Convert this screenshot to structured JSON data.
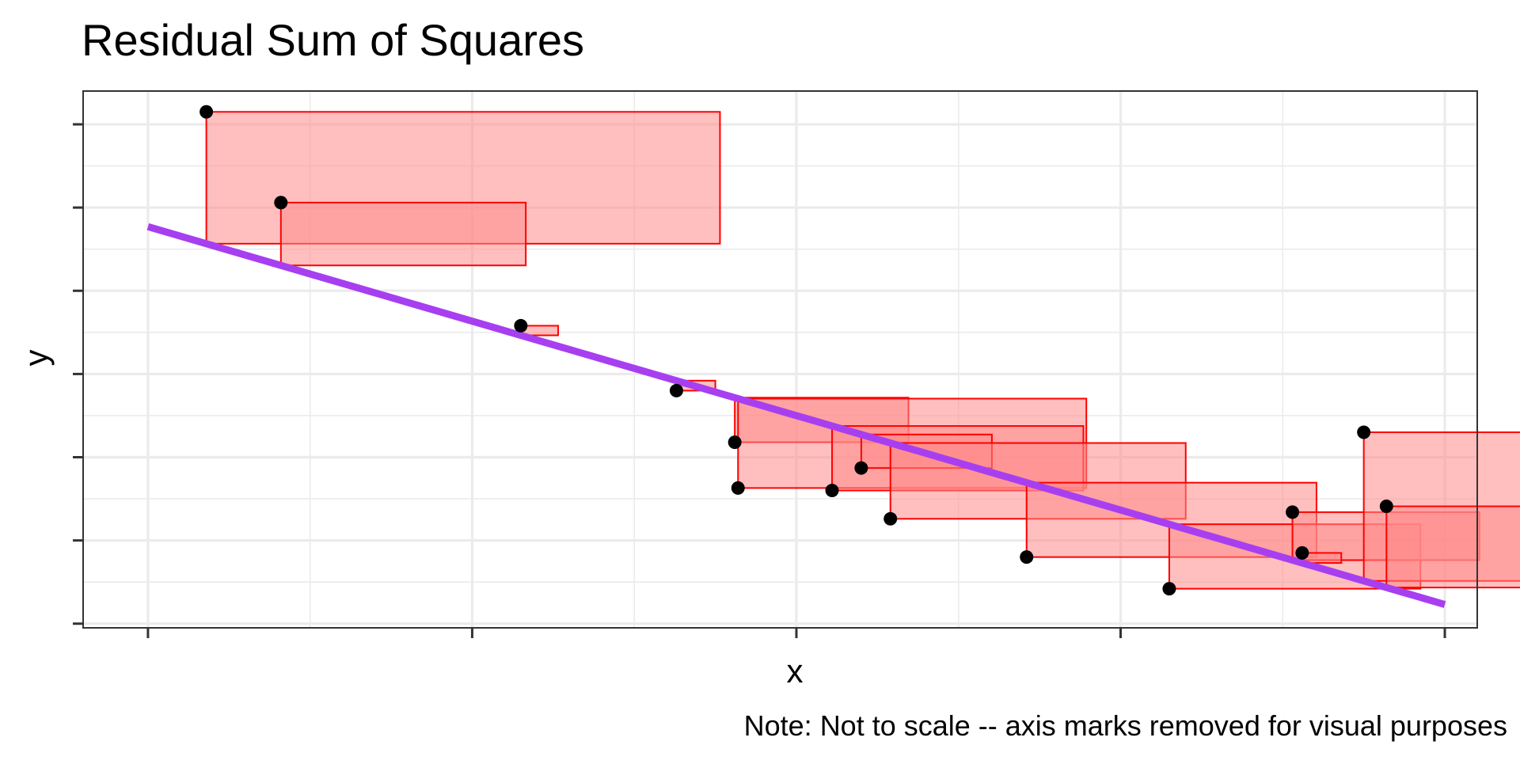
{
  "chart_data": {
    "type": "scatter",
    "title": "Residual Sum of Squares",
    "xlabel": "x",
    "ylabel": "y",
    "caption": "Note: Not to scale -- axis marks removed for visual purposes",
    "x_tick_labels_shown": false,
    "y_tick_labels_shown": false,
    "grid": true,
    "xlim": [
      -0.2,
      4.1
    ],
    "ylim": [
      -0.05,
      6.4
    ],
    "points": [
      {
        "x": 0.18,
        "y": 6.15
      },
      {
        "x": 0.41,
        "y": 5.06
      },
      {
        "x": 1.15,
        "y": 3.58
      },
      {
        "x": 1.63,
        "y": 2.8
      },
      {
        "x": 1.81,
        "y": 2.18
      },
      {
        "x": 1.82,
        "y": 1.63
      },
      {
        "x": 2.11,
        "y": 1.6
      },
      {
        "x": 2.2,
        "y": 1.87
      },
      {
        "x": 2.29,
        "y": 1.26
      },
      {
        "x": 2.71,
        "y": 0.8
      },
      {
        "x": 3.15,
        "y": 0.42
      },
      {
        "x": 3.53,
        "y": 1.34
      },
      {
        "x": 3.56,
        "y": 0.85
      },
      {
        "x": 3.75,
        "y": 2.3
      },
      {
        "x": 3.82,
        "y": 1.41
      }
    ],
    "fit_line": {
      "x": [
        0,
        4
      ],
      "y": [
        4.77,
        0.23
      ]
    },
    "colors": {
      "fit_line": "#a73ff0",
      "square_fill": "#ff8a8a",
      "square_stroke": "#ff0000",
      "points": "#000000",
      "grid": "#ebebeb",
      "panel_border": "#333333"
    }
  }
}
